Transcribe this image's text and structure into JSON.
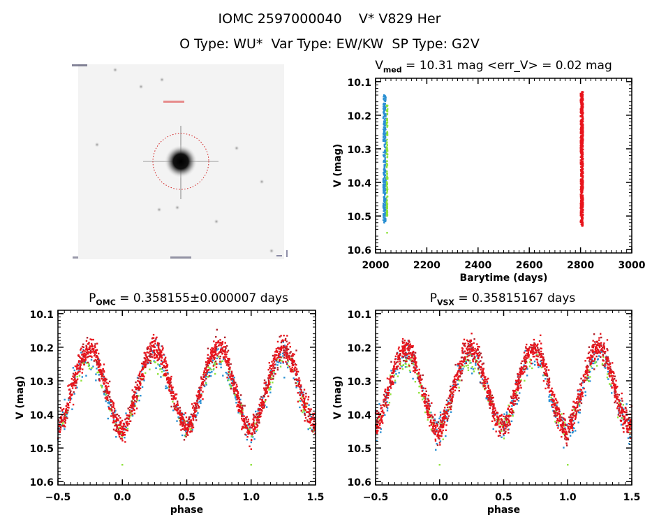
{
  "header": {
    "line1": "IOMC 2597000040    V* V829 Her",
    "line2": "O Type: WU*  Var Type: EW/KW  SP Type: G2V"
  },
  "colors": {
    "red": "#e8141c",
    "darkred": "#b0202a",
    "blue": "#2a90d2",
    "green": "#8fe23c",
    "circle": "#d01818"
  },
  "chart_data": [
    {
      "id": "image",
      "type": "image",
      "description_icon": "sky-image-thumbnail"
    },
    {
      "id": "timeseries",
      "type": "scatter",
      "title_main": "V",
      "title_sub": "med",
      "title_rest": " = 10.31 mag <err_V> = 0.02 mag",
      "xlabel": "Barytime (days)",
      "ylabel": "V (mag)",
      "xlim": [
        2000,
        3000
      ],
      "ylim": [
        10.61,
        10.09
      ],
      "xticks": [
        "2000",
        "2200",
        "2400",
        "2600",
        "2800",
        "3000"
      ],
      "yticks": [
        "10.1",
        "10.2",
        "10.3",
        "10.4",
        "10.5",
        "10.6"
      ],
      "series": [
        {
          "name": "blue",
          "color": "#2a90d2",
          "x_range": [
            2030,
            2040
          ],
          "y_range": [
            10.14,
            10.52
          ],
          "n": 300
        },
        {
          "name": "green",
          "color": "#8fe23c",
          "x_range": [
            2043,
            2047
          ],
          "y_range": [
            10.17,
            10.5
          ],
          "n": 120,
          "outliers": [
            [
              2045,
              10.55
            ]
          ]
        },
        {
          "name": "red",
          "color": "#e8141c",
          "x_range": [
            2800,
            2810
          ],
          "y_range": [
            10.13,
            10.53
          ],
          "n": 600
        }
      ]
    },
    {
      "id": "phase_omc",
      "type": "scatter",
      "title_main": "P",
      "title_sub": "OMC",
      "title_rest": " = 0.358155±0.000007 days",
      "xlabel": "phase",
      "ylabel": "V (mag)",
      "xlim": [
        -0.5,
        1.5
      ],
      "ylim": [
        10.61,
        10.09
      ],
      "xticks": [
        "-0.5",
        "0.0",
        "0.5",
        "1.0",
        "1.5"
      ],
      "yticks": [
        "10.1",
        "10.2",
        "10.3",
        "10.4",
        "10.5",
        "10.6"
      ],
      "phase_shift": 0.0,
      "mean_curve": {
        "phase": [
          0,
          0.05,
          0.1,
          0.15,
          0.2,
          0.25,
          0.3,
          0.35,
          0.4,
          0.45,
          0.5,
          0.55,
          0.6,
          0.65,
          0.7,
          0.75,
          0.8,
          0.85,
          0.9,
          0.95
        ],
        "V": [
          10.46,
          10.41,
          10.35,
          10.28,
          10.22,
          10.2,
          10.22,
          10.28,
          10.35,
          10.41,
          10.44,
          10.41,
          10.34,
          10.27,
          10.22,
          10.2,
          10.22,
          10.29,
          10.36,
          10.42
        ]
      }
    },
    {
      "id": "phase_vsx",
      "type": "scatter",
      "title_main": "P",
      "title_sub": "VSX",
      "title_rest": " = 0.35815167 days",
      "xlabel": "phase",
      "ylabel": "V (mag)",
      "xlim": [
        -0.5,
        1.5
      ],
      "ylim": [
        10.61,
        10.09
      ],
      "xticks": [
        "-0.5",
        "0.0",
        "0.5",
        "1.0",
        "1.5"
      ],
      "yticks": [
        "10.1",
        "10.2",
        "10.3",
        "10.4",
        "10.5",
        "10.6"
      ],
      "phase_shift": 0.01,
      "mean_curve": {
        "phase": [
          0,
          0.05,
          0.1,
          0.15,
          0.2,
          0.25,
          0.3,
          0.35,
          0.4,
          0.45,
          0.5,
          0.55,
          0.6,
          0.65,
          0.7,
          0.75,
          0.8,
          0.85,
          0.9,
          0.95
        ],
        "V": [
          10.46,
          10.41,
          10.35,
          10.28,
          10.22,
          10.2,
          10.22,
          10.28,
          10.35,
          10.41,
          10.44,
          10.41,
          10.34,
          10.27,
          10.22,
          10.2,
          10.22,
          10.29,
          10.36,
          10.42
        ]
      }
    }
  ]
}
